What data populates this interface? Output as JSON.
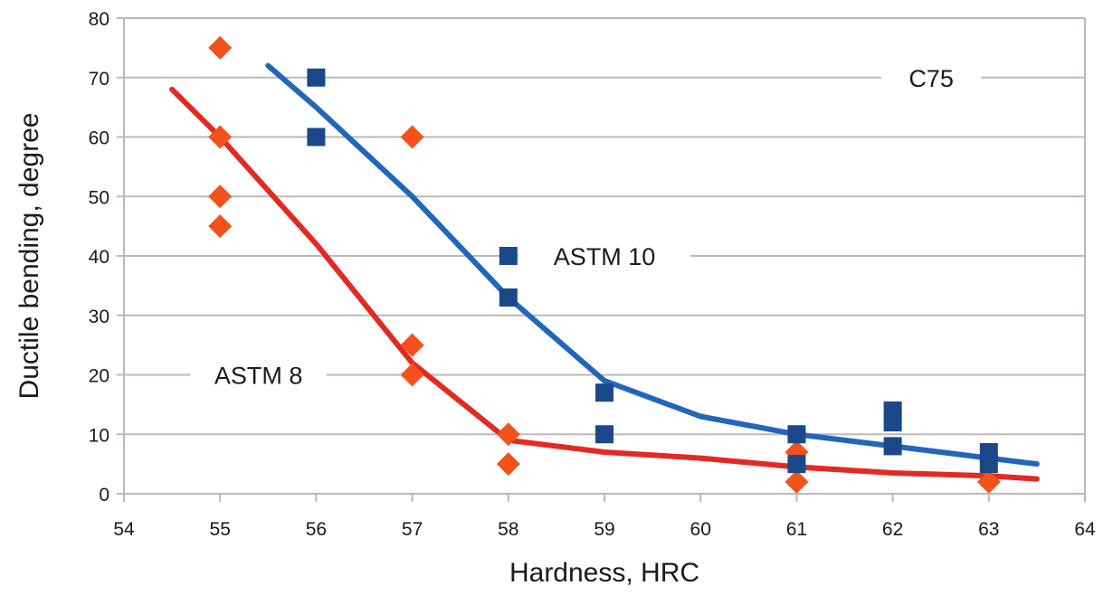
{
  "chart_data": {
    "type": "scatter",
    "title": "",
    "xlabel": "Hardness, HRC",
    "ylabel": "Ductile bending, degree",
    "xlim": [
      54,
      64
    ],
    "ylim": [
      0,
      80
    ],
    "xticks": [
      54,
      55,
      56,
      57,
      58,
      59,
      60,
      61,
      62,
      63,
      64
    ],
    "yticks": [
      0,
      10,
      20,
      30,
      40,
      50,
      60,
      70,
      80
    ],
    "grid": "horizontal",
    "legend": "none",
    "colors": {
      "astm8_points": "#f4511e",
      "astm8_line": "#e22a22",
      "astm10_points": "#1b4889",
      "astm10_line": "#2266bb",
      "grid": "#bdb8b6"
    },
    "series": [
      {
        "name": "ASTM 8 data",
        "kind": "scatter",
        "marker": "diamond",
        "points": [
          [
            55,
            75
          ],
          [
            55,
            60
          ],
          [
            55,
            50
          ],
          [
            55,
            45
          ],
          [
            57,
            60
          ],
          [
            57,
            25
          ],
          [
            57,
            20
          ],
          [
            58,
            10
          ],
          [
            58,
            5
          ],
          [
            61,
            7
          ],
          [
            61,
            2
          ],
          [
            63,
            2
          ]
        ]
      },
      {
        "name": "ASTM 10 data",
        "kind": "scatter",
        "marker": "square",
        "points": [
          [
            56,
            70
          ],
          [
            56,
            60
          ],
          [
            58,
            40
          ],
          [
            58,
            33
          ],
          [
            59,
            17
          ],
          [
            59,
            10
          ],
          [
            61,
            10
          ],
          [
            61,
            5
          ],
          [
            62,
            14
          ],
          [
            62,
            12
          ],
          [
            62,
            8
          ],
          [
            63,
            7
          ],
          [
            63,
            5
          ]
        ]
      },
      {
        "name": "ASTM 8 trend",
        "kind": "line",
        "points": [
          [
            54.5,
            68
          ],
          [
            55,
            60
          ],
          [
            56,
            42
          ],
          [
            57,
            22
          ],
          [
            58,
            9
          ],
          [
            59,
            7
          ],
          [
            60,
            6
          ],
          [
            61,
            4.5
          ],
          [
            62,
            3.5
          ],
          [
            63,
            3
          ],
          [
            63.5,
            2.5
          ]
        ]
      },
      {
        "name": "ASTM 10 trend",
        "kind": "line",
        "points": [
          [
            55.5,
            72
          ],
          [
            56,
            65
          ],
          [
            57,
            50
          ],
          [
            58,
            33
          ],
          [
            59,
            19
          ],
          [
            60,
            13
          ],
          [
            61,
            10
          ],
          [
            62,
            8
          ],
          [
            63,
            6
          ],
          [
            63.5,
            5
          ]
        ]
      }
    ],
    "annotations": [
      {
        "text": "C75",
        "x": 62.4,
        "y": 70
      },
      {
        "text": "ASTM 10",
        "x": 59.0,
        "y": 40
      },
      {
        "text": "ASTM 8",
        "x": 55.4,
        "y": 20
      }
    ]
  }
}
